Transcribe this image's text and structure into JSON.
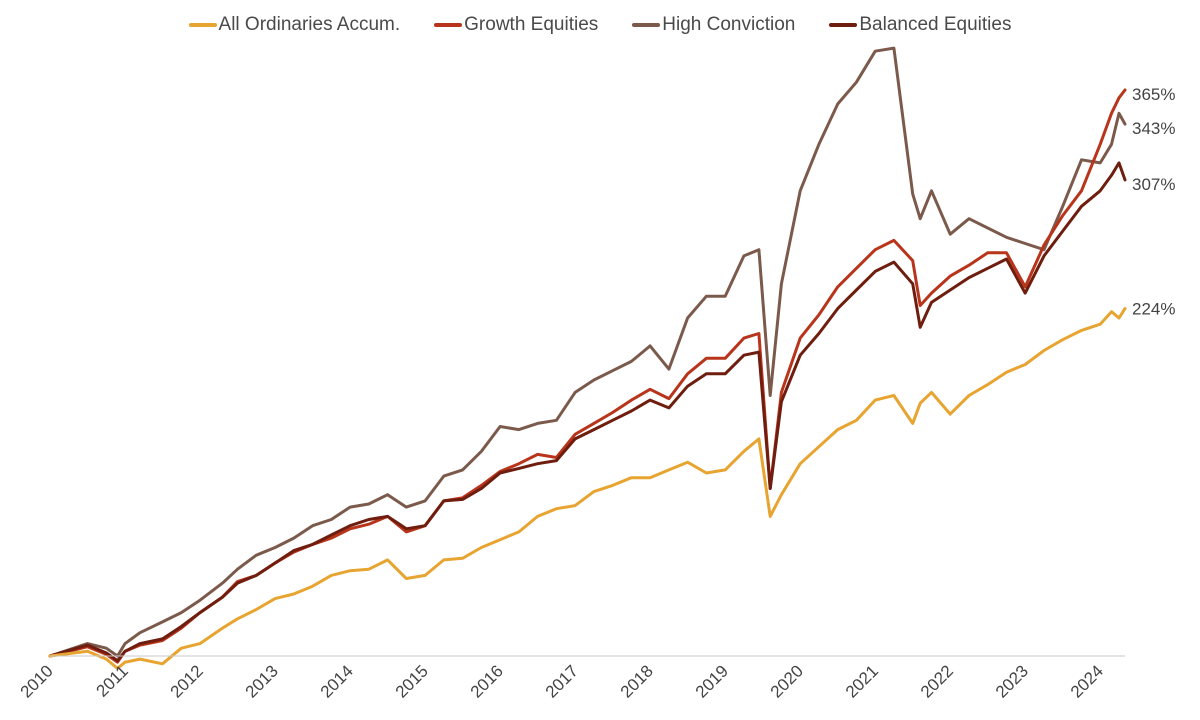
{
  "chart_data": {
    "type": "line",
    "title": "",
    "xlabel": "",
    "ylabel": "",
    "x_tick_labels": [
      "2010",
      "2011",
      "2012",
      "2013",
      "2014",
      "2015",
      "2016",
      "2017",
      "2018",
      "2019",
      "2020",
      "2021",
      "2022",
      "2023",
      "2024"
    ],
    "xlim": [
      2010.0,
      2024.33
    ],
    "ylim": [
      -20,
      400
    ],
    "grid": false,
    "legend_position": "top-center",
    "end_labels": [
      "224%",
      "365%",
      "343%",
      "307%"
    ],
    "series": [
      {
        "name": "All Ordinaries Accum.",
        "color": "#e8a430",
        "end_label": "224%",
        "x": [
          2010.0,
          2010.5,
          2010.75,
          2010.9,
          2011.0,
          2011.2,
          2011.5,
          2011.75,
          2012.0,
          2012.3,
          2012.5,
          2012.75,
          2013.0,
          2013.25,
          2013.5,
          2013.75,
          2014.0,
          2014.25,
          2014.5,
          2014.75,
          2015.0,
          2015.25,
          2015.5,
          2015.75,
          2016.0,
          2016.25,
          2016.5,
          2016.75,
          2017.0,
          2017.25,
          2017.5,
          2017.75,
          2018.0,
          2018.25,
          2018.5,
          2018.75,
          2019.0,
          2019.25,
          2019.45,
          2019.6,
          2019.75,
          2020.0,
          2020.25,
          2020.5,
          2020.75,
          2021.0,
          2021.25,
          2021.5,
          2021.6,
          2021.75,
          2022.0,
          2022.25,
          2022.5,
          2022.75,
          2023.0,
          2023.25,
          2023.5,
          2023.75,
          2024.0,
          2024.15,
          2024.25,
          2024.33
        ],
        "values": [
          0,
          3,
          -2,
          -8,
          -4,
          -2,
          -5,
          5,
          8,
          18,
          24,
          30,
          37,
          40,
          45,
          52,
          55,
          56,
          62,
          50,
          52,
          62,
          63,
          70,
          75,
          80,
          90,
          95,
          97,
          106,
          110,
          115,
          115,
          120,
          125,
          118,
          120,
          132,
          140,
          90,
          104,
          124,
          135,
          146,
          152,
          165,
          168,
          150,
          163,
          170,
          156,
          168,
          175,
          183,
          188,
          197,
          204,
          210,
          214,
          222,
          218,
          224
        ]
      },
      {
        "name": "Growth Equities",
        "color": "#b8341b",
        "end_label": "365%",
        "x": [
          2010.0,
          2010.5,
          2010.75,
          2010.9,
          2011.0,
          2011.2,
          2011.5,
          2011.75,
          2012.0,
          2012.3,
          2012.5,
          2012.75,
          2013.0,
          2013.25,
          2013.5,
          2013.75,
          2014.0,
          2014.25,
          2014.5,
          2014.75,
          2015.0,
          2015.25,
          2015.5,
          2015.75,
          2016.0,
          2016.25,
          2016.5,
          2016.75,
          2017.0,
          2017.25,
          2017.5,
          2017.75,
          2018.0,
          2018.25,
          2018.5,
          2018.75,
          2019.0,
          2019.25,
          2019.45,
          2019.6,
          2019.75,
          2020.0,
          2020.25,
          2020.5,
          2020.75,
          2021.0,
          2021.25,
          2021.5,
          2021.6,
          2021.75,
          2022.0,
          2022.25,
          2022.5,
          2022.75,
          2023.0,
          2023.25,
          2023.5,
          2023.75,
          2024.0,
          2024.15,
          2024.25,
          2024.33
        ],
        "values": [
          0,
          6,
          1,
          -4,
          3,
          7,
          10,
          18,
          28,
          38,
          48,
          52,
          60,
          67,
          72,
          76,
          82,
          85,
          90,
          80,
          84,
          100,
          102,
          110,
          119,
          124,
          130,
          128,
          143,
          150,
          157,
          165,
          172,
          166,
          182,
          192,
          192,
          205,
          208,
          108,
          170,
          205,
          220,
          238,
          250,
          262,
          268,
          255,
          226,
          234,
          245,
          252,
          260,
          260,
          238,
          265,
          284,
          300,
          330,
          350,
          360,
          365
        ]
      },
      {
        "name": "High Conviction",
        "color": "#7b5a4c",
        "end_label": "343%",
        "x": [
          2010.0,
          2010.5,
          2010.75,
          2010.9,
          2011.0,
          2011.2,
          2011.5,
          2011.75,
          2012.0,
          2012.3,
          2012.5,
          2012.75,
          2013.0,
          2013.25,
          2013.5,
          2013.75,
          2014.0,
          2014.25,
          2014.5,
          2014.75,
          2015.0,
          2015.25,
          2015.5,
          2015.75,
          2016.0,
          2016.25,
          2016.5,
          2016.75,
          2017.0,
          2017.25,
          2017.5,
          2017.75,
          2018.0,
          2018.25,
          2018.5,
          2018.75,
          2019.0,
          2019.25,
          2019.45,
          2019.6,
          2019.75,
          2020.0,
          2020.25,
          2020.5,
          2020.75,
          2021.0,
          2021.25,
          2021.5,
          2021.6,
          2021.75,
          2022.0,
          2022.25,
          2022.5,
          2022.75,
          2023.0,
          2023.25,
          2023.5,
          2023.75,
          2024.0,
          2024.15,
          2024.25,
          2024.33
        ],
        "values": [
          0,
          8,
          5,
          0,
          8,
          15,
          22,
          28,
          36,
          47,
          56,
          65,
          70,
          76,
          84,
          88,
          96,
          98,
          104,
          96,
          100,
          116,
          120,
          132,
          148,
          146,
          150,
          152,
          170,
          178,
          184,
          190,
          200,
          185,
          218,
          232,
          232,
          258,
          262,
          168,
          240,
          300,
          330,
          356,
          370,
          390,
          392,
          298,
          282,
          300,
          272,
          282,
          276,
          270,
          266,
          262,
          290,
          320,
          318,
          330,
          350,
          343
        ]
      },
      {
        "name": "Balanced Equities",
        "color": "#6e1d0e",
        "end_label": "307%",
        "x": [
          2010.0,
          2010.5,
          2010.75,
          2010.9,
          2011.0,
          2011.2,
          2011.5,
          2011.75,
          2012.0,
          2012.3,
          2012.5,
          2012.75,
          2013.0,
          2013.25,
          2013.5,
          2013.75,
          2014.0,
          2014.25,
          2014.5,
          2014.75,
          2015.0,
          2015.25,
          2015.5,
          2015.75,
          2016.0,
          2016.25,
          2016.5,
          2016.75,
          2017.0,
          2017.25,
          2017.5,
          2017.75,
          2018.0,
          2018.25,
          2018.5,
          2018.75,
          2019.0,
          2019.25,
          2019.45,
          2019.6,
          2019.75,
          2020.0,
          2020.25,
          2020.5,
          2020.75,
          2021.0,
          2021.25,
          2021.5,
          2021.6,
          2021.75,
          2022.0,
          2022.25,
          2022.5,
          2022.75,
          2023.0,
          2023.25,
          2023.5,
          2023.75,
          2024.0,
          2024.15,
          2024.25,
          2024.33
        ],
        "values": [
          0,
          7,
          2,
          -3,
          3,
          8,
          11,
          19,
          28,
          38,
          47,
          52,
          60,
          68,
          72,
          78,
          84,
          88,
          90,
          82,
          84,
          100,
          101,
          108,
          118,
          121,
          124,
          126,
          140,
          146,
          152,
          158,
          165,
          160,
          174,
          182,
          182,
          194,
          196,
          108,
          164,
          194,
          208,
          224,
          236,
          248,
          254,
          240,
          212,
          228,
          236,
          244,
          250,
          256,
          234,
          258,
          274,
          290,
          300,
          310,
          318,
          307
        ]
      }
    ]
  }
}
